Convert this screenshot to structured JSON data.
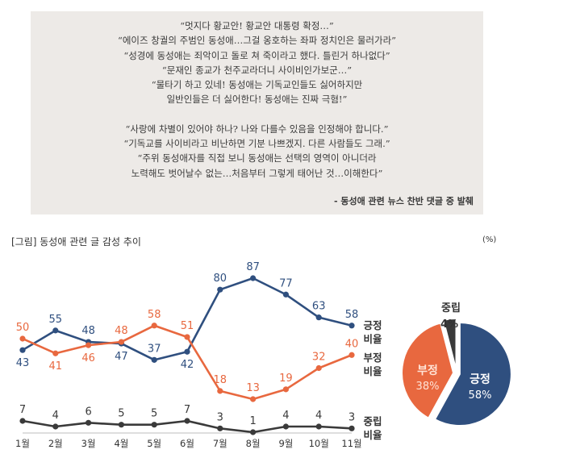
{
  "quotes": {
    "negative": [
      "“멋지다 황교안! 황교안 대통령 확정…”",
      "“에이즈 창궐의 주범인 동성애…그걸 옹호하는 좌파 정치인은 물러가라”",
      "“성경에 동성애는 죄악이고 돌로 쳐 죽이라고 했다. 틀린거 하나없다”",
      "“문재인 종교가 천주교라더니 사이비인가보군…”",
      "“물타기 하고 있네! 동성애는 기독교인들도 싫어하지만",
      "일반인들은 더 싫어한다! 동성애는 진짜 극혐!”"
    ],
    "positive": [
      "“사랑에 차별이 있어야 하나? 나와 다를수 있음을 인정해야 합니다.”",
      "“기독교를 사이비라고 비난하면 기분 나쁘겠지. 다른 사람들도 그래.”",
      "“주위 동성애자를 직접 보니 동성애는 선택의 영역이 아니더라",
      "노력해도 벗어날수 없는…처음부터 그렇게 태어난 것…이해한다”"
    ],
    "source": "- 동성애 관련 뉴스 찬반 댓글 중 발췌"
  },
  "figure": {
    "title": "[그림] 동성애 관련 글 감성 추이",
    "unit": "(%)"
  },
  "colors": {
    "positive": "#2f4f7f",
    "negative": "#e8683f",
    "neutral": "#3a3a3a",
    "quote_bg": "#edeae7"
  },
  "chart_data": [
    {
      "type": "line",
      "title": "[그림] 동성애 관련 글 감성 추이",
      "ylabel": "(%)",
      "categories": [
        "1월",
        "2월",
        "3월",
        "4월",
        "5월",
        "6월",
        "7월",
        "8월",
        "9월",
        "10월",
        "11월"
      ],
      "series": [
        {
          "name": "긍정 비율",
          "legend": [
            "긍정",
            "비율"
          ],
          "key": "positive",
          "values": [
            43,
            55,
            48,
            47,
            37,
            42,
            80,
            87,
            77,
            63,
            58
          ]
        },
        {
          "name": "부정 비율",
          "legend": [
            "부정",
            "비율"
          ],
          "key": "negative",
          "values": [
            50,
            41,
            46,
            48,
            58,
            51,
            18,
            13,
            19,
            32,
            40
          ]
        },
        {
          "name": "중립 비율",
          "legend": [
            "중립",
            "비율"
          ],
          "key": "neutral",
          "values": [
            7,
            4,
            6,
            5,
            5,
            7,
            3,
            1,
            4,
            4,
            3
          ]
        }
      ],
      "grid": false,
      "legend_placement": "right"
    },
    {
      "type": "pie",
      "slices": [
        {
          "label": "긍정",
          "value": 58,
          "text": "58%",
          "key": "positive"
        },
        {
          "label": "부정",
          "value": 38,
          "text": "38%",
          "key": "negative"
        },
        {
          "label": "중립",
          "value": 4,
          "text": "4%",
          "key": "neutral"
        }
      ]
    }
  ]
}
